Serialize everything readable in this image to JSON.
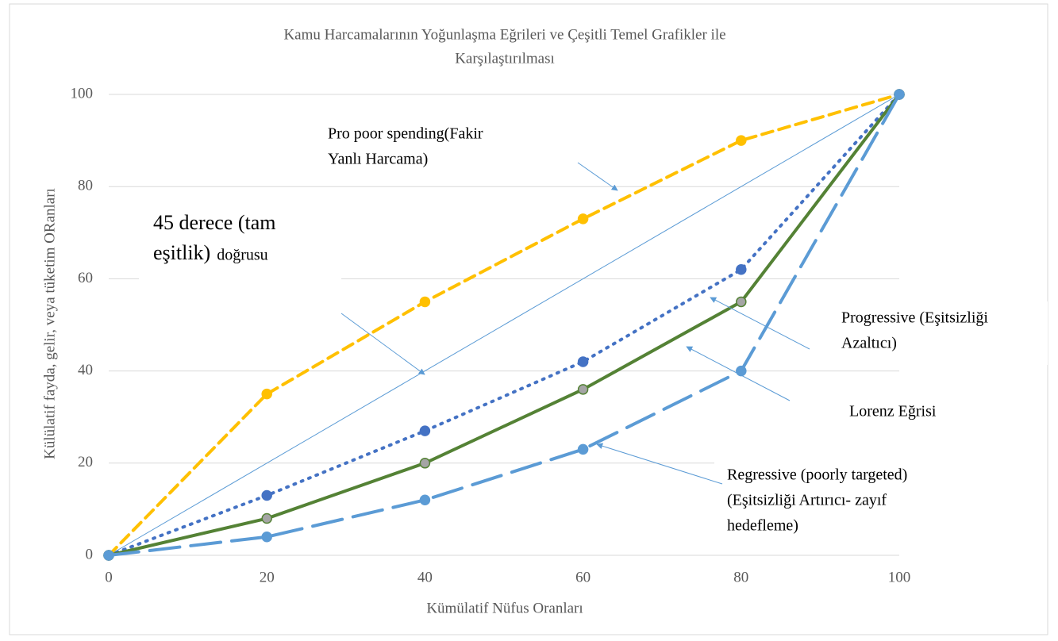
{
  "chart_data": {
    "type": "line",
    "title": [
      "Kamu Harcamalarının Yoğunlaşma Eğrileri ve Çeşitli Temel Grafikler ile",
      "Karşılaştırılması"
    ],
    "x_label": "Kümülatif Nüfus Oranları",
    "y_label": "Külülatif fayda, gelir, veya tüketim ORanları",
    "x": [
      0,
      20,
      40,
      60,
      80,
      100
    ],
    "xlim": [
      0,
      100
    ],
    "xticks": [
      0,
      20,
      40,
      60,
      80,
      100
    ],
    "ylim": [
      0,
      100
    ],
    "yticks": [
      0,
      20,
      40,
      60,
      80,
      100
    ],
    "grid": true,
    "series": [
      {
        "color": "#5b9bd5",
        "dash": "none",
        "width": 1,
        "markers": false,
        "values": [
          0,
          20,
          40,
          60,
          80,
          100
        ]
      },
      {
        "color": "#ffc000",
        "dash": "14 8",
        "width": 4,
        "markers": true,
        "marker_fill": "#ffc000",
        "values": [
          0,
          35,
          55,
          73,
          90,
          100
        ]
      },
      {
        "color": "#4472c4",
        "dash": "2 8",
        "width": 4,
        "markers": true,
        "marker_fill": "#4472c4",
        "values": [
          0,
          13,
          27,
          42,
          62,
          100
        ]
      },
      {
        "color": "#548235",
        "dash": "none",
        "width": 4,
        "markers": true,
        "marker_fill": "#a5a5a5",
        "values": [
          0,
          8,
          20,
          36,
          55,
          100
        ]
      },
      {
        "color": "#5b9bd5",
        "dash": "38 14",
        "width": 4,
        "markers": true,
        "marker_fill": "#5b9bd5",
        "values": [
          0,
          4,
          12,
          23,
          40,
          100
        ]
      }
    ],
    "annotations": [
      {
        "lines": [
          "Pro poor spending(Fakir",
          "Yanlı Harcama)"
        ]
      },
      {
        "lines": [
          "45 derece (tam",
          "eşitlik)"
        ],
        "extra": "doğrusu"
      },
      {
        "lines": [
          "Progressive (Eşitsizliği",
          "Azaltıcı)"
        ]
      },
      {
        "lines": [
          "Lorenz Eğrisi"
        ]
      },
      {
        "lines": [
          "Regressive (poorly targeted)",
          "(Eşitsizliği Artırıcı- zayıf",
          "hedefleme)"
        ]
      }
    ]
  }
}
